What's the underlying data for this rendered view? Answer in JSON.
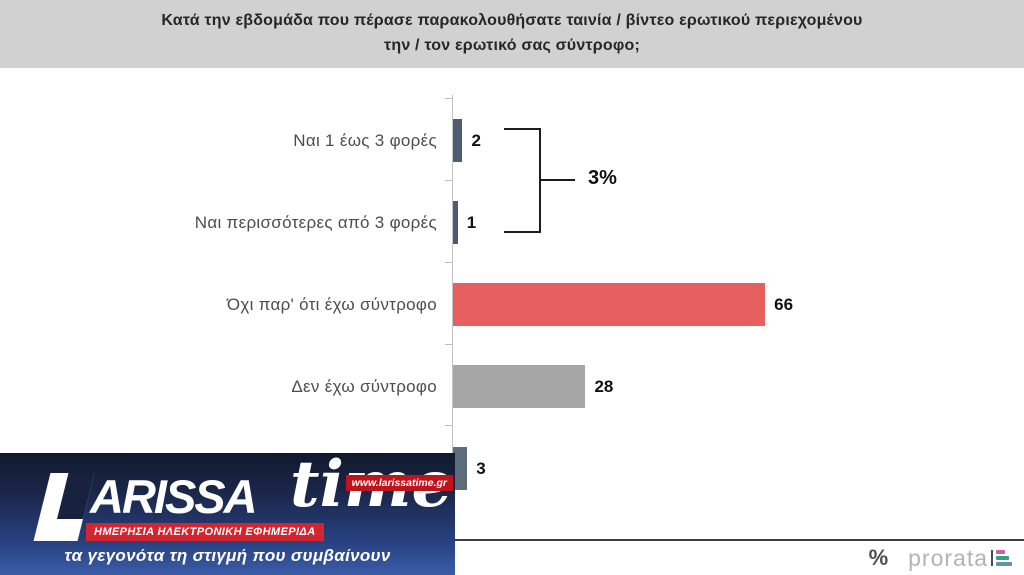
{
  "header": {
    "title_line1": "Κατά την εβδομάδα που πέρασε παρακολουθήσατε ταινία / βίντεο ερωτικού περιεχομένου",
    "title_line2": "την / τον ερωτικό σας σύντροφο;"
  },
  "chart_data": {
    "type": "bar",
    "orientation": "horizontal",
    "unit": "%",
    "categories": [
      "Ναι 1 έως 3 φορές",
      "Ναι περισσότερες από 3 φορές",
      "Όχι παρ' ότι έχω σύντροφο",
      "Δεν έχω σύντροφο",
      ""
    ],
    "values": [
      2,
      1,
      66,
      28,
      3
    ],
    "colors": [
      "#4d5c71",
      "#4d5c71",
      "#e85f5f",
      "#a6a6a6",
      "#5d6c7b"
    ],
    "grid": "off",
    "x_axis_labels_visible": false,
    "annotation": {
      "label": "3%",
      "grouped_categories": [
        "Ναι 1 έως 3 φορές",
        "Ναι περισσότερες από 3 φορές"
      ]
    },
    "note": "fifth category label hidden behind publisher logo"
  },
  "branding": {
    "larissa": {
      "name_part1": "L",
      "name_part2": "ARISSA",
      "name_part3": "time",
      "url_badge": "www.larissatime.gr",
      "subtitle": "ΗΜΕΡΗΣΙΑ ΗΛΕΚΤΡΟΝΙΚΗ ΕΦΗΜΕΡΙΔΑ",
      "tagline": "τα γεγονότα τη στιγμή που συμβαίνουν"
    },
    "prorata": {
      "symbol": "%",
      "name": "prorata"
    }
  },
  "colors": {
    "header_bg": "#d1d1d1",
    "bar_slate": "#4d5c71",
    "bar_red": "#e85f5f",
    "bar_gray": "#a6a6a6",
    "logo_red": "#d32530",
    "logo_blue_top": "#12192e",
    "logo_blue_bottom": "#3a5ca8"
  }
}
